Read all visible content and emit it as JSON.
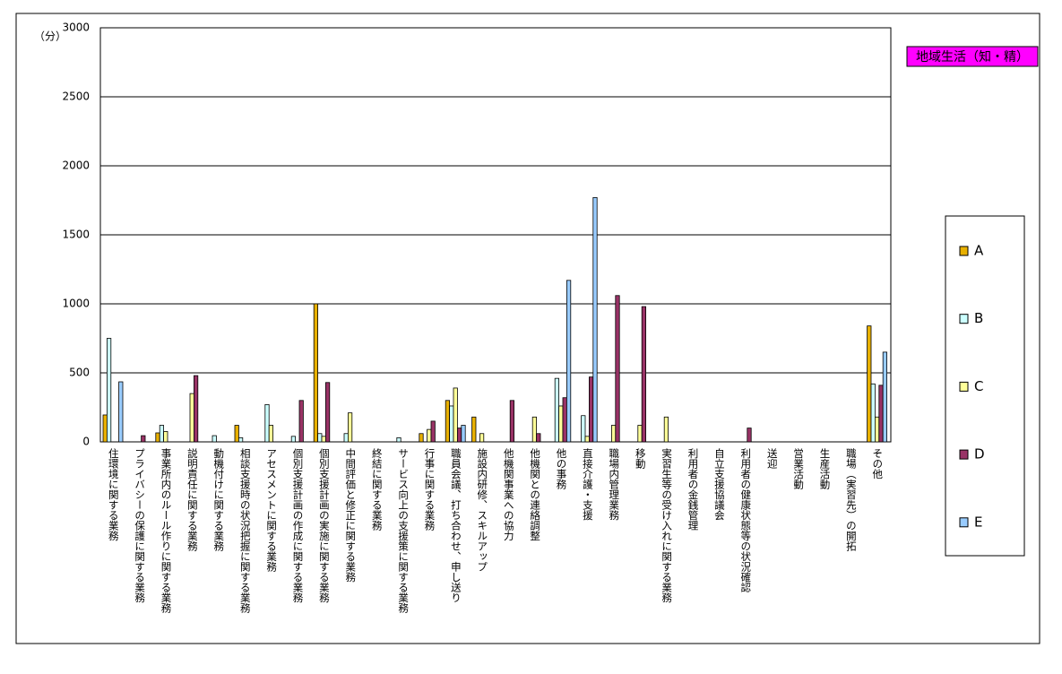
{
  "chart_data": {
    "type": "bar",
    "title": "地域生活（知・精）",
    "y_label": "（分）",
    "categories": [
      "住環境に関する業務",
      "プライバシーの保護に関する業務",
      "事業所内のルール作りに関する業務",
      "説明責任に関する業務",
      "動機付けに関する業務",
      "相談支援時の状況把握に関する業務",
      "アセスメントに関する業務",
      "個別支援計画の作成に関する業務",
      "個別支援計画の実施に関する業務",
      "中間評価と修正に関する業務",
      "終結に関する業務",
      "サービス向上の支援策に関する業務",
      "行事に関する業務",
      "職員会議、打ち合わせ、申し送り",
      "施設内研修、スキルアップ",
      "他機関事業への協力",
      "他機関との連絡調整",
      "他の事務",
      "直接介護・支援",
      "職場内管理業務",
      "移動",
      "実習生等の受け入れに関する業務",
      "利用者の金銭管理",
      "自立支援協議会",
      "利用者の健康状態等の状況確認",
      "送迎",
      "営業活動",
      "生産活動",
      "職場（実習先）の開拓",
      "その他"
    ],
    "series": [
      {
        "name": "A",
        "color": "#e8b000",
        "values": [
          195,
          0,
          65,
          0,
          0,
          120,
          0,
          0,
          1000,
          0,
          0,
          0,
          60,
          300,
          180,
          0,
          0,
          0,
          0,
          0,
          0,
          0,
          0,
          0,
          0,
          0,
          0,
          0,
          0,
          840
        ]
      },
      {
        "name": "B",
        "color": "#ccffff",
        "values": [
          750,
          0,
          120,
          0,
          45,
          30,
          270,
          40,
          60,
          60,
          0,
          30,
          0,
          260,
          0,
          0,
          0,
          460,
          190,
          0,
          0,
          0,
          0,
          0,
          0,
          0,
          0,
          0,
          0,
          420
        ]
      },
      {
        "name": "C",
        "color": "#ffff99",
        "values": [
          0,
          0,
          75,
          350,
          0,
          0,
          120,
          0,
          40,
          210,
          0,
          0,
          90,
          390,
          60,
          0,
          180,
          260,
          40,
          120,
          120,
          180,
          0,
          0,
          0,
          0,
          0,
          0,
          0,
          180
        ]
      },
      {
        "name": "D",
        "color": "#993366",
        "values": [
          0,
          45,
          0,
          480,
          0,
          0,
          0,
          300,
          430,
          0,
          0,
          0,
          150,
          100,
          0,
          300,
          60,
          320,
          470,
          1060,
          980,
          0,
          0,
          0,
          100,
          0,
          0,
          0,
          0,
          410
        ]
      },
      {
        "name": "E",
        "color": "#99ccff",
        "values": [
          435,
          0,
          0,
          0,
          0,
          0,
          0,
          0,
          0,
          0,
          0,
          0,
          0,
          120,
          0,
          0,
          0,
          1170,
          1770,
          0,
          0,
          0,
          0,
          0,
          0,
          0,
          0,
          0,
          0,
          650
        ]
      }
    ],
    "ylim": [
      0,
      3000
    ],
    "yticks": [
      0,
      500,
      1000,
      1500,
      2000,
      2500,
      3000
    ],
    "grid": true,
    "legend": "right"
  }
}
